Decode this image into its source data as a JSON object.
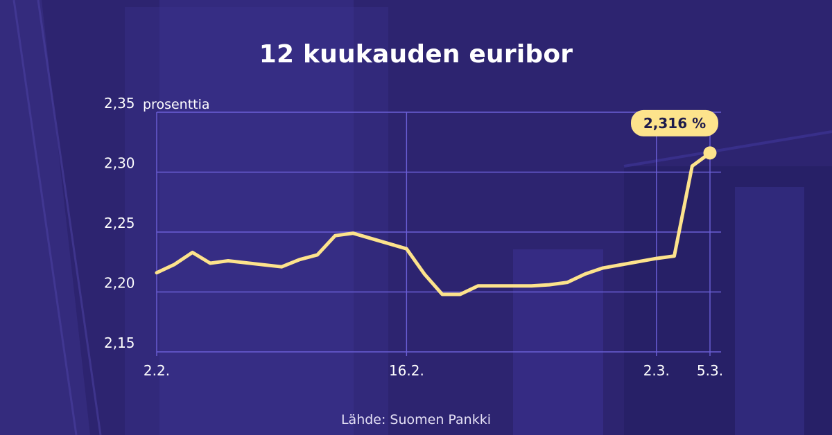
{
  "title": "12 kuukauden euribor",
  "source": "Lähde: Suomen Pankki",
  "colors": {
    "background": "#2d2470",
    "grid": "#6b5fd6",
    "line": "#fde38c",
    "text": "#ffffff",
    "callout_bg": "#fde38c",
    "callout_text": "#1e1b4b"
  },
  "chart_data": {
    "type": "line",
    "title": "12 kuukauden euribor",
    "ylabel": "prosenttia",
    "ylim": [
      2.15,
      2.35
    ],
    "yticks": [
      2.15,
      2.2,
      2.25,
      2.3,
      2.35
    ],
    "ytick_labels": [
      "2,15",
      "2,20",
      "2,25",
      "2,30",
      "2,35"
    ],
    "xticks": [
      {
        "date": "2.2.",
        "label": "2.2."
      },
      {
        "date": "16.2.",
        "label": "16.2."
      },
      {
        "date": "2.3.",
        "label": "2.3."
      },
      {
        "date": "5.3.",
        "label": "5.3."
      }
    ],
    "grid": true,
    "series": [
      {
        "points": [
          {
            "x": "2.2.",
            "y": 2.216
          },
          {
            "x": "3.2.",
            "y": 2.223
          },
          {
            "x": "4.2.",
            "y": 2.233
          },
          {
            "x": "5.2.",
            "y": 2.224
          },
          {
            "x": "6.2.",
            "y": 2.226
          },
          {
            "x": "9.2.",
            "y": 2.221
          },
          {
            "x": "10.2.",
            "y": 2.227
          },
          {
            "x": "11.2.",
            "y": 2.231
          },
          {
            "x": "12.2.",
            "y": 2.247
          },
          {
            "x": "13.2.",
            "y": 2.249
          },
          {
            "x": "16.2.",
            "y": 2.236
          },
          {
            "x": "17.2.",
            "y": 2.215
          },
          {
            "x": "18.2.",
            "y": 2.198
          },
          {
            "x": "19.2.",
            "y": 2.198
          },
          {
            "x": "20.2.",
            "y": 2.205
          },
          {
            "x": "23.2.",
            "y": 2.205
          },
          {
            "x": "24.2.",
            "y": 2.206
          },
          {
            "x": "25.2.",
            "y": 2.208
          },
          {
            "x": "26.2.",
            "y": 2.215
          },
          {
            "x": "27.2.",
            "y": 2.22
          },
          {
            "x": "2.3.",
            "y": 2.228
          },
          {
            "x": "3.3.",
            "y": 2.23
          },
          {
            "x": "4.3.",
            "y": 2.305
          },
          {
            "x": "5.3.",
            "y": 2.316
          }
        ]
      }
    ],
    "annotation": {
      "x": "5.3.",
      "y": 2.316,
      "label": "2,316 %"
    }
  }
}
